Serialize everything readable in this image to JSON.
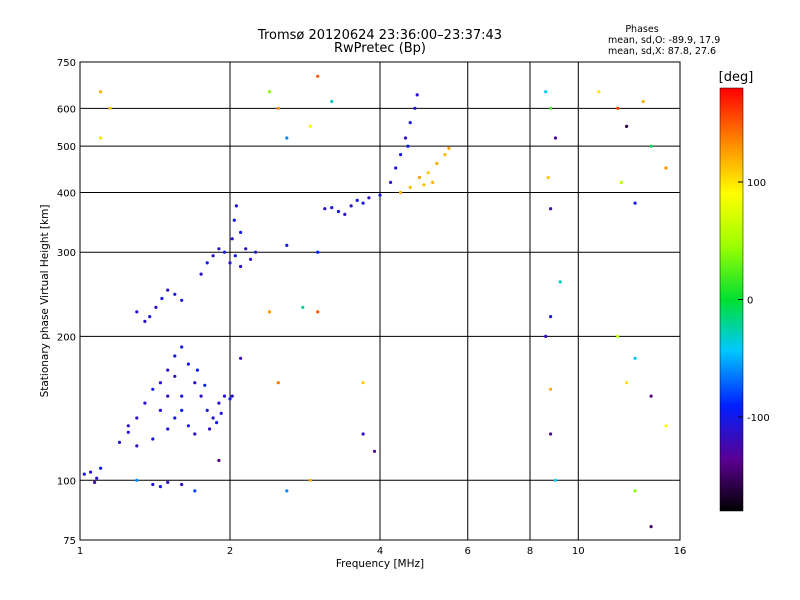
{
  "chart_data": {
    "type": "scatter",
    "title": "Tromsø 20120624 23:36:00–23:37:43",
    "subtitle": "RwPretec (Bp)",
    "xlabel": "Frequency [MHz]",
    "ylabel": "Stationary phase Virtual Height [km]",
    "x_scale": "log",
    "y_scale": "log",
    "xlim": [
      1,
      16
    ],
    "ylim": [
      75,
      750
    ],
    "x_ticks": [
      1,
      2,
      4,
      6,
      8,
      10,
      16
    ],
    "x_tick_labels": [
      "1",
      "2",
      "4",
      "6",
      "8",
      "10",
      "16"
    ],
    "y_ticks": [
      75,
      100,
      200,
      300,
      400,
      500,
      600,
      750
    ],
    "y_tick_labels": [
      "75",
      "100",
      "200",
      "300",
      "400",
      "500",
      "600",
      "750"
    ],
    "grid": true,
    "stats": {
      "heading": "Phases",
      "line_o": "mean, sd,O: -89.9, 17.9",
      "line_x": "mean, sd,X:  87.8, 27.6"
    },
    "colorbar": {
      "label": "[deg]",
      "range": [
        -180,
        180
      ],
      "ticks": [
        100,
        0,
        -100
      ],
      "tick_labels": [
        "100",
        "0",
        "-100"
      ]
    },
    "series": [
      {
        "values": [
          [
            1.02,
            103,
            -105
          ],
          [
            1.05,
            104,
            -110
          ],
          [
            1.08,
            101,
            -115
          ],
          [
            1.1,
            106,
            -100
          ],
          [
            1.07,
            99,
            -120
          ],
          [
            1.2,
            120,
            -105
          ],
          [
            1.25,
            126,
            -108
          ],
          [
            1.3,
            135,
            -112
          ],
          [
            1.35,
            145,
            -110
          ],
          [
            1.4,
            155,
            -100
          ],
          [
            1.45,
            160,
            -115
          ],
          [
            1.5,
            170,
            -110
          ],
          [
            1.55,
            182,
            -105
          ],
          [
            1.6,
            190,
            -100
          ],
          [
            1.55,
            165,
            -118
          ],
          [
            1.5,
            150,
            -112
          ],
          [
            1.45,
            140,
            -107
          ],
          [
            1.65,
            175,
            -103
          ],
          [
            1.7,
            160,
            -110
          ],
          [
            1.75,
            150,
            -115
          ],
          [
            1.8,
            140,
            -105
          ],
          [
            1.85,
            135,
            -108
          ],
          [
            1.9,
            145,
            -110
          ],
          [
            1.95,
            150,
            -112
          ],
          [
            2.0,
            148,
            -100
          ],
          [
            1.6,
            140,
            -95
          ],
          [
            1.65,
            130,
            -102
          ],
          [
            1.7,
            125,
            -110
          ],
          [
            1.4,
            122,
            -106
          ],
          [
            1.3,
            118,
            -114
          ],
          [
            1.25,
            130,
            -109
          ],
          [
            1.5,
            128,
            -104
          ],
          [
            1.55,
            135,
            -98
          ],
          [
            1.6,
            150,
            -101
          ],
          [
            1.72,
            170,
            -96
          ],
          [
            1.78,
            158,
            -90
          ],
          [
            1.82,
            128,
            -116
          ],
          [
            1.88,
            132,
            -99
          ],
          [
            1.92,
            138,
            -103
          ],
          [
            2.02,
            150,
            -107
          ],
          [
            1.35,
            215,
            -110
          ],
          [
            1.38,
            220,
            -105
          ],
          [
            1.42,
            230,
            -110
          ],
          [
            1.46,
            240,
            -100
          ],
          [
            1.5,
            250,
            -112
          ],
          [
            1.55,
            245,
            -108
          ],
          [
            1.6,
            238,
            -105
          ],
          [
            1.3,
            225,
            -115
          ],
          [
            1.75,
            270,
            -110
          ],
          [
            1.8,
            285,
            -100
          ],
          [
            1.85,
            295,
            -108
          ],
          [
            1.9,
            305,
            -110
          ],
          [
            1.95,
            300,
            -105
          ],
          [
            2.0,
            285,
            -112
          ],
          [
            2.05,
            295,
            -100
          ],
          [
            2.1,
            280,
            -115
          ],
          [
            2.02,
            320,
            -110
          ],
          [
            2.04,
            350,
            -105
          ],
          [
            2.06,
            375,
            -108
          ],
          [
            2.1,
            330,
            -100
          ],
          [
            2.15,
            305,
            -112
          ],
          [
            2.2,
            290,
            -110
          ],
          [
            2.25,
            300,
            -105
          ],
          [
            1.4,
            98,
            -110
          ],
          [
            1.45,
            97,
            -100
          ],
          [
            1.5,
            99,
            -108
          ],
          [
            1.6,
            98,
            -112
          ],
          [
            3.1,
            370,
            -110
          ],
          [
            3.3,
            365,
            -105
          ],
          [
            3.5,
            375,
            -112
          ],
          [
            3.6,
            385,
            -100
          ],
          [
            3.8,
            390,
            -108
          ],
          [
            3.4,
            360,
            -115
          ],
          [
            3.2,
            372,
            -104
          ],
          [
            3.7,
            380,
            -99
          ],
          [
            4.0,
            395,
            -105
          ],
          [
            4.2,
            420,
            -110
          ],
          [
            4.4,
            480,
            -100
          ],
          [
            4.5,
            520,
            -112
          ],
          [
            4.6,
            560,
            -105
          ],
          [
            4.7,
            600,
            -108
          ],
          [
            4.75,
            640,
            -110
          ],
          [
            4.55,
            500,
            -98
          ],
          [
            4.3,
            450,
            -104
          ],
          [
            4.4,
            400,
            120
          ],
          [
            4.6,
            410,
            115
          ],
          [
            4.8,
            430,
            125
          ],
          [
            5.0,
            440,
            110
          ],
          [
            5.2,
            460,
            120
          ],
          [
            5.4,
            480,
            115
          ],
          [
            5.5,
            495,
            125
          ],
          [
            5.1,
            420,
            118
          ],
          [
            4.9,
            415,
            112
          ],
          [
            1.1,
            650,
            120
          ],
          [
            1.15,
            600,
            110
          ],
          [
            1.1,
            520,
            100
          ],
          [
            2.4,
            650,
            40
          ],
          [
            2.5,
            600,
            130
          ],
          [
            3.0,
            700,
            150
          ],
          [
            3.2,
            620,
            -30
          ],
          [
            2.6,
            520,
            -60
          ],
          [
            2.9,
            550,
            90
          ],
          [
            8.6,
            650,
            -40
          ],
          [
            8.8,
            600,
            20
          ],
          [
            9.0,
            520,
            -130
          ],
          [
            11.0,
            650,
            100
          ],
          [
            12.0,
            600,
            160
          ],
          [
            12.5,
            550,
            -160
          ],
          [
            13.5,
            620,
            120
          ],
          [
            14.0,
            500,
            -10
          ],
          [
            15.0,
            450,
            130
          ],
          [
            12.2,
            420,
            60
          ],
          [
            13.0,
            380,
            -100
          ],
          [
            8.7,
            430,
            110
          ],
          [
            8.8,
            370,
            -120
          ],
          [
            9.2,
            260,
            -30
          ],
          [
            8.8,
            220,
            -100
          ],
          [
            8.6,
            200,
            -120
          ],
          [
            12.0,
            200,
            60
          ],
          [
            13.0,
            180,
            -40
          ],
          [
            12.5,
            160,
            100
          ],
          [
            14.0,
            150,
            -140
          ],
          [
            15.0,
            130,
            90
          ],
          [
            8.8,
            155,
            120
          ],
          [
            8.8,
            125,
            -130
          ],
          [
            9.0,
            100,
            -40
          ],
          [
            14.0,
            80,
            -150
          ],
          [
            13.0,
            95,
            40
          ],
          [
            2.6,
            310,
            -100
          ],
          [
            3.0,
            300,
            -90
          ],
          [
            3.0,
            225,
            150
          ],
          [
            2.8,
            230,
            -20
          ],
          [
            2.4,
            225,
            130
          ],
          [
            3.7,
            160,
            110
          ],
          [
            3.7,
            125,
            -110
          ],
          [
            3.9,
            115,
            -130
          ],
          [
            2.9,
            100,
            120
          ],
          [
            2.6,
            95,
            -60
          ],
          [
            2.1,
            180,
            -120
          ],
          [
            2.5,
            160,
            140
          ],
          [
            1.9,
            110,
            -140
          ],
          [
            1.7,
            95,
            -80
          ],
          [
            1.3,
            100,
            -60
          ]
        ]
      }
    ]
  }
}
